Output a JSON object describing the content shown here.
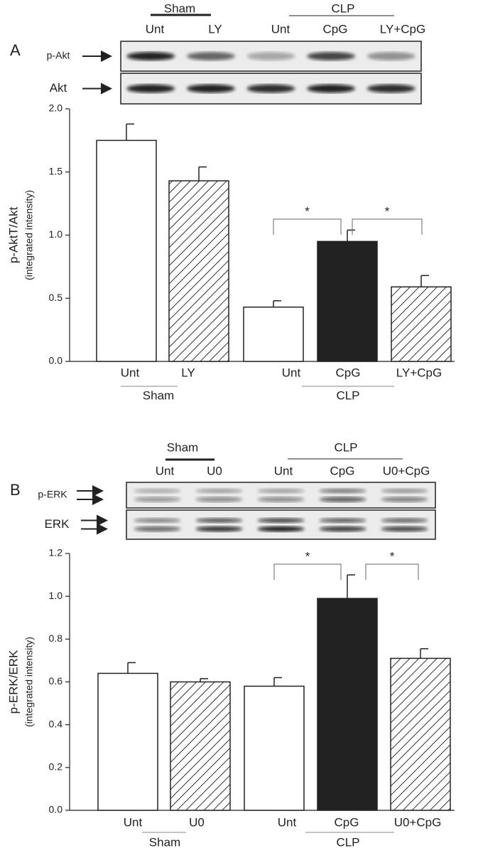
{
  "figure": {
    "panels": [
      {
        "letter": "A",
        "groups": [
          {
            "label": "Sham",
            "lanes": [
              "Unt",
              "LY"
            ]
          },
          {
            "label": "CLP",
            "lanes": [
              "Unt",
              "CpG",
              "LY+CpG"
            ]
          }
        ],
        "rows": [
          "p-Akt",
          "Akt"
        ]
      },
      {
        "letter": "B",
        "groups": [
          {
            "label": "Sham",
            "lanes": [
              "Unt",
              "U0"
            ]
          },
          {
            "label": "CLP",
            "lanes": [
              "Unt",
              "CpG",
              "U0+CpG"
            ]
          }
        ],
        "rows": [
          "p-ERK",
          "ERK"
        ]
      }
    ]
  },
  "chart_data": [
    {
      "type": "bar",
      "y_label": "p-AktT/Akt",
      "y_sublabel": "(integrated intensity)",
      "categories": [
        "Unt",
        "LY",
        "Unt",
        "CpG",
        "LY+CpG"
      ],
      "groups": [
        "Sham",
        "CLP"
      ],
      "values": [
        1.75,
        1.43,
        0.43,
        0.95,
        0.59
      ],
      "errors": [
        0.13,
        0.11,
        0.05,
        0.09,
        0.09
      ],
      "fills": [
        "open",
        "hatched",
        "open",
        "solid",
        "hatched"
      ],
      "color": "#222222",
      "annotations": [
        "*",
        "*"
      ],
      "ylim": [
        0,
        2.0
      ],
      "yticks": [
        {
          "value": 0,
          "label": "0.0"
        },
        0.5,
        {
          "value": 1,
          "label": "1.0"
        },
        1.5,
        {
          "value": 2,
          "label": "2.0"
        }
      ]
    },
    {
      "type": "bar",
      "y_label": "p-ERK/ERK",
      "y_sublabel": "(integrated intensity)",
      "categories": [
        "Unt",
        "U0",
        "Unt",
        "CpG",
        "U0+CpG"
      ],
      "groups": [
        "Sham",
        "CLP"
      ],
      "values": [
        0.64,
        0.6,
        0.58,
        0.99,
        0.71
      ],
      "errors": [
        0.05,
        0.015,
        0.04,
        0.11,
        0.045
      ],
      "fills": [
        "open",
        "hatched",
        "open",
        "solid",
        "hatched"
      ],
      "color": "#222222",
      "annotations": [
        "*",
        "*"
      ],
      "ylim": [
        0,
        1.2
      ],
      "yticks": [
        {
          "value": 0,
          "label": "0.0"
        },
        0.2,
        0.4,
        0.6,
        0.8,
        {
          "value": 1,
          "label": "1.0"
        },
        1.2
      ]
    }
  ]
}
